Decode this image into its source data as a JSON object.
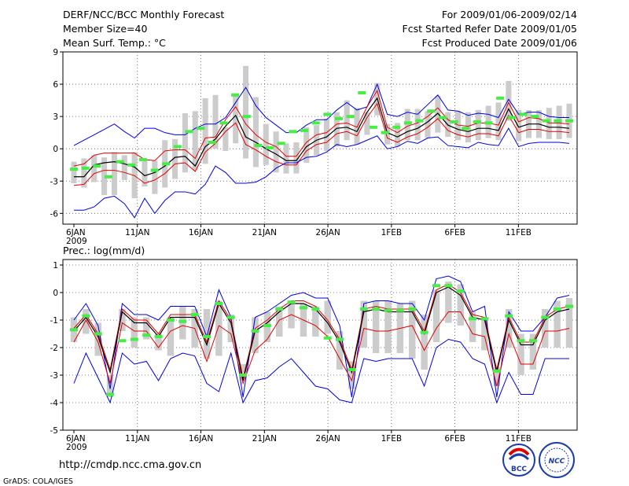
{
  "header": {
    "title": "DERF/NCC/BCC Monthly Forecast",
    "member_size": "Member Size=40",
    "variable": "Mean Surf. Temp.: °C",
    "period": "For 2009/01/06-2009/02/14",
    "refer_date": "Fcst Started Refer Date 2009/01/05",
    "produced_date": "Fcst Produced Date 2009/01/06"
  },
  "footer": {
    "url": "http://cmdp.ncc.cma.gov.cn",
    "credit": "GrADS: COLA/IGES",
    "logo_left_text": "BCC",
    "logo_right_text": "NCC"
  },
  "colors": {
    "blue": "#0000e0",
    "red": "#e00000",
    "black": "#000000",
    "green": "#44ee44",
    "box": "#cccccc"
  },
  "chart_data": [
    {
      "type": "line",
      "name": "temperature",
      "title": "Mean Surf. Temp.: °C",
      "xlabel": "",
      "ylabel": "°C",
      "ylim": [
        -7,
        9
      ],
      "yticks": [
        -6,
        -3,
        0,
        3,
        6,
        9
      ],
      "xticks": [
        "6JAN\n2009",
        "11JAN",
        "16JAN",
        "21JAN",
        "26JAN",
        "1FEB",
        "6FEB",
        "11FEB"
      ],
      "grid": true,
      "days": 40,
      "series": [
        {
          "name": "max",
          "color": "blue",
          "values": [
            0.3,
            0.8,
            1.3,
            1.8,
            2.3,
            1.6,
            1.0,
            1.9,
            1.9,
            1.5,
            1.3,
            1.3,
            1.9,
            2.3,
            2.3,
            2.9,
            4.3,
            5.7,
            4.0,
            2.9,
            2.2,
            1.5,
            1.5,
            2.2,
            2.7,
            2.7,
            3.6,
            4.3,
            3.6,
            3.9,
            6.0,
            3.2,
            3.0,
            3.4,
            3.2,
            4.1,
            5.0,
            3.6,
            3.5,
            3.1,
            3.3,
            3.2,
            2.9,
            4.6,
            3.2,
            3.4,
            3.4,
            3.0,
            2.9,
            2.9
          ]
        },
        {
          "name": "upper",
          "color": "red",
          "values": [
            -1.6,
            -1.4,
            -0.6,
            -0.4,
            -0.4,
            -0.4,
            -0.4,
            -1.0,
            -1.1,
            -0.2,
            -0.1,
            -0.1,
            -0.9,
            1.0,
            1.1,
            2.7,
            3.9,
            2.3,
            1.3,
            0.6,
            0.2,
            -0.7,
            -0.7,
            0.6,
            1.3,
            1.5,
            2.3,
            2.4,
            2.0,
            3.9,
            5.4,
            2.0,
            1.5,
            2.1,
            2.4,
            3.0,
            3.8,
            2.7,
            2.2,
            2.1,
            2.4,
            2.4,
            2.2,
            4.3,
            2.5,
            2.9,
            2.8,
            2.4,
            2.4,
            2.3
          ]
        },
        {
          "name": "mean",
          "color": "black",
          "values": [
            -2.6,
            -2.6,
            -1.5,
            -1.3,
            -1.2,
            -1.4,
            -1.7,
            -2.5,
            -2.2,
            -1.6,
            -0.8,
            -0.7,
            -1.6,
            0.2,
            0.9,
            2.1,
            3.1,
            1.1,
            0.6,
            0.0,
            -0.5,
            -1.1,
            -1.1,
            0.2,
            0.8,
            1.1,
            1.9,
            2.0,
            1.6,
            3.4,
            4.7,
            1.5,
            1.1,
            1.6,
            1.9,
            2.5,
            3.3,
            2.2,
            1.8,
            1.6,
            1.9,
            1.9,
            1.7,
            3.7,
            2.0,
            2.3,
            2.3,
            2.0,
            2.0,
            1.9
          ]
        },
        {
          "name": "lower",
          "color": "red",
          "values": [
            -3.4,
            -3.3,
            -2.3,
            -2.0,
            -2.0,
            -2.2,
            -2.5,
            -3.2,
            -2.9,
            -2.3,
            -1.4,
            -1.3,
            -2.1,
            -0.3,
            0.5,
            1.6,
            2.4,
            0.4,
            -0.1,
            -0.7,
            -1.2,
            -1.5,
            -1.5,
            -0.2,
            0.4,
            0.6,
            1.4,
            1.6,
            1.2,
            2.9,
            4.2,
            1.0,
            0.6,
            1.1,
            1.4,
            2.0,
            2.8,
            1.7,
            1.3,
            1.1,
            1.4,
            1.4,
            1.2,
            3.1,
            1.5,
            1.8,
            1.8,
            1.6,
            1.6,
            1.5
          ]
        },
        {
          "name": "min",
          "color": "blue",
          "values": [
            -5.7,
            -5.7,
            -5.4,
            -4.6,
            -4.4,
            -5.1,
            -6.4,
            -4.6,
            -6.0,
            -4.8,
            -4.0,
            -4.0,
            -4.2,
            -3.3,
            -1.6,
            -2.2,
            -3.2,
            -3.2,
            -3.1,
            -2.6,
            -1.8,
            -1.3,
            -1.3,
            -0.8,
            -0.7,
            -0.3,
            0.4,
            0.2,
            0.4,
            0.8,
            1.2,
            0.0,
            0.2,
            0.7,
            0.5,
            1.0,
            1.1,
            0.3,
            0.2,
            0.1,
            0.6,
            0.4,
            0.3,
            1.9,
            0.2,
            0.5,
            0.6,
            0.6,
            0.6,
            0.5
          ]
        }
      ],
      "boxes": {
        "low": [
          -3.2,
          -3.6,
          -3.1,
          -4.3,
          -4.3,
          -2.9,
          -4.6,
          -3.5,
          -4.2,
          -3.6,
          -2.8,
          -2.2,
          -2.0,
          -1.4,
          0.0,
          -0.2,
          0.5,
          -0.9,
          -1.7,
          -1.5,
          -2.2,
          -2.3,
          -2.3,
          -1.3,
          -0.6,
          -0.2,
          0.2,
          0.8,
          0.4,
          1.3,
          3.1,
          0.4,
          0.2,
          0.8,
          0.8,
          1.0,
          1.5,
          1.1,
          0.8,
          0.6,
          0.8,
          1.0,
          0.8,
          2.6,
          0.7,
          1.0,
          1.0,
          0.9,
          0.9,
          1.0
        ],
        "high": [
          -1.2,
          -0.9,
          -0.6,
          -0.8,
          -0.3,
          -0.6,
          -0.3,
          -1.1,
          -1.1,
          0.8,
          0.9,
          3.3,
          3.5,
          4.7,
          5.0,
          2.0,
          4.9,
          7.7,
          4.8,
          2.3,
          1.6,
          0.5,
          0.6,
          2.0,
          2.2,
          2.8,
          3.4,
          4.5,
          3.8,
          3.4,
          6.1,
          2.3,
          2.4,
          3.7,
          3.7,
          3.5,
          4.9,
          3.4,
          3.5,
          3.4,
          3.6,
          4.0,
          4.3,
          6.3,
          3.6,
          3.6,
          3.6,
          3.8,
          4.0,
          4.2
        ]
      },
      "markers": [
        -1.9,
        -1.8,
        -1.6,
        -2.6,
        -1.2,
        -1.5,
        -1.0,
        -2.0,
        -1.4,
        0.2,
        1.6,
        1.9,
        0.6,
        2.4,
        5.0,
        3.0,
        0.3,
        0.1,
        0.5,
        1.6,
        1.7,
        2.4,
        3.2,
        2.8,
        3.0,
        5.2,
        2.0,
        1.5,
        2.0,
        2.4,
        2.6,
        3.5,
        2.9,
        2.5,
        1.9,
        2.5,
        2.4,
        4.7,
        2.9,
        3.2,
        3.0,
        2.6,
        2.6,
        2.6
      ]
    },
    {
      "type": "line",
      "name": "precipitation",
      "title": "Prec.: log(mm/d)",
      "xlabel": "",
      "ylabel": "log(mm/d)",
      "ylim": [
        -5,
        1.2
      ],
      "yticks": [
        -5,
        -4,
        -3,
        -2,
        -1,
        0,
        1
      ],
      "xticks": [
        "6JAN\n2009",
        "11JAN",
        "16JAN",
        "21JAN",
        "26JAN",
        "1FEB",
        "6FEB",
        "11FEB"
      ],
      "grid": true,
      "days": 40,
      "series": [
        {
          "name": "max",
          "color": "blue",
          "values": [
            -1.0,
            -0.4,
            -1.2,
            -3.5,
            -0.4,
            -0.8,
            -0.8,
            -1.0,
            -0.5,
            -0.5,
            -0.5,
            -1.6,
            0.1,
            -0.9,
            -3.8,
            -0.9,
            -0.7,
            -0.4,
            -0.1,
            0.0,
            -0.2,
            -0.2,
            -1.2,
            -3.8,
            -0.4,
            -0.3,
            -0.3,
            -0.4,
            -0.4,
            -1.0,
            0.5,
            0.6,
            0.4,
            -0.7,
            -0.5,
            -3.8,
            -0.7,
            -1.4,
            -1.4,
            -0.9,
            -0.2,
            -0.1
          ]
        },
        {
          "name": "upper",
          "color": "red",
          "values": [
            -1.3,
            -0.8,
            -1.5,
            -2.8,
            -0.6,
            -1.0,
            -1.0,
            -1.5,
            -0.8,
            -0.8,
            -0.8,
            -1.8,
            -0.3,
            -1.0,
            -3.1,
            -1.3,
            -1.0,
            -0.6,
            -0.3,
            -0.3,
            -0.5,
            -1.0,
            -1.7,
            -2.8,
            -0.6,
            -0.5,
            -0.6,
            -0.6,
            -0.6,
            -1.4,
            0.1,
            0.3,
            0.0,
            -0.8,
            -0.9,
            -2.8,
            -0.9,
            -1.8,
            -1.8,
            -0.9,
            -0.6,
            -0.5
          ]
        },
        {
          "name": "mean",
          "color": "black",
          "values": [
            -1.4,
            -0.9,
            -1.6,
            -2.9,
            -0.7,
            -1.1,
            -1.1,
            -1.6,
            -0.9,
            -0.9,
            -0.9,
            -1.9,
            -0.4,
            -1.1,
            -3.2,
            -1.4,
            -1.1,
            -0.7,
            -0.4,
            -0.4,
            -0.6,
            -1.1,
            -1.8,
            -2.9,
            -0.7,
            -0.6,
            -0.7,
            -0.7,
            -0.7,
            -1.5,
            0.0,
            0.2,
            -0.1,
            -0.9,
            -1.0,
            -2.9,
            -1.0,
            -1.9,
            -1.9,
            -1.0,
            -0.7,
            -0.6
          ]
        },
        {
          "name": "lower",
          "color": "red",
          "values": [
            -1.8,
            -1.0,
            -1.8,
            -3.3,
            -1.1,
            -1.4,
            -1.4,
            -2.0,
            -1.4,
            -1.2,
            -1.3,
            -2.5,
            -1.2,
            -1.5,
            -3.3,
            -2.1,
            -1.7,
            -1.0,
            -0.8,
            -1.0,
            -1.2,
            -1.6,
            -2.4,
            -3.2,
            -1.3,
            -1.4,
            -1.4,
            -1.3,
            -1.2,
            -2.1,
            -1.3,
            -0.7,
            -0.7,
            -1.5,
            -1.6,
            -3.4,
            -1.5,
            -2.6,
            -2.6,
            -1.4,
            -1.4,
            -1.3
          ]
        },
        {
          "name": "min",
          "color": "blue",
          "values": [
            -3.3,
            -2.2,
            -3.1,
            -4.0,
            -2.2,
            -2.6,
            -2.5,
            -3.2,
            -2.4,
            -2.2,
            -2.3,
            -3.3,
            -3.6,
            -2.2,
            -4.0,
            -3.2,
            -3.1,
            -2.7,
            -2.4,
            -2.9,
            -3.4,
            -3.5,
            -3.9,
            -4.0,
            -2.4,
            -2.5,
            -2.4,
            -2.4,
            -2.4,
            -3.4,
            -2.0,
            -1.7,
            -1.8,
            -2.4,
            -2.6,
            -4.0,
            -2.9,
            -3.7,
            -3.7,
            -2.4,
            -2.4,
            -2.4
          ]
        }
      ],
      "boxes": {
        "low": [
          -1.8,
          -1.5,
          -2.3,
          -3.8,
          -1.4,
          -2.0,
          -1.7,
          -2.1,
          -2.3,
          -1.7,
          -2.0,
          -2.4,
          -2.3,
          -1.8,
          -2.9,
          -2.2,
          -1.8,
          -1.6,
          -1.3,
          -1.6,
          -1.6,
          -1.5,
          -2.8,
          -3.5,
          -2.0,
          -2.2,
          -2.2,
          -2.2,
          -2.4,
          -2.8,
          -1.8,
          -1.1,
          -1.2,
          -1.8,
          -2.1,
          -3.4,
          -2.0,
          -3.0,
          -2.8,
          -2.0,
          -2.0,
          -2.0
        ],
        "high": [
          -0.9,
          -0.6,
          -1.1,
          -3.0,
          -0.6,
          -0.9,
          -0.9,
          -1.5,
          -0.9,
          -0.5,
          -0.6,
          -0.6,
          -0.3,
          -0.8,
          -2.6,
          -0.9,
          -0.7,
          -0.5,
          -0.3,
          -0.4,
          -0.5,
          -0.3,
          -1.4,
          -2.5,
          -0.3,
          -0.3,
          -0.3,
          -0.4,
          -0.3,
          -0.8,
          0.1,
          0.4,
          0.3,
          -0.7,
          -0.9,
          -2.7,
          -0.6,
          -1.5,
          -1.5,
          -0.6,
          -0.3,
          -0.2
        ]
      },
      "markers": [
        -1.35,
        -0.85,
        -1.5,
        -3.7,
        -1.75,
        -1.7,
        -1.55,
        -1.6,
        -1.0,
        -1.05,
        -0.8,
        -1.6,
        -0.4,
        -0.9,
        -3.0,
        -1.4,
        -1.2,
        -0.6,
        -0.35,
        -0.55,
        -0.6,
        -1.65,
        -1.7,
        -2.8,
        -0.6,
        -0.6,
        -0.65,
        -0.65,
        -0.6,
        -1.45,
        0.25,
        0.25,
        0.05,
        -0.95,
        -0.95,
        -2.85,
        -0.85,
        -1.75,
        -1.75,
        -0.9,
        -0.6,
        -0.5
      ]
    }
  ]
}
